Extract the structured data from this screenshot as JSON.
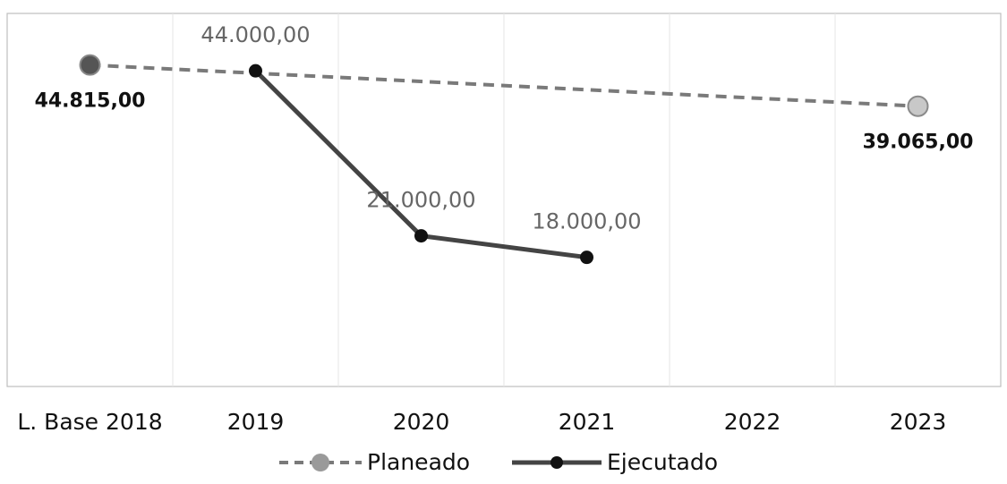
{
  "chart_data": {
    "type": "line",
    "categories": [
      "L. Base 2018",
      "2019",
      "2020",
      "2021",
      "2022",
      "2023"
    ],
    "series": [
      {
        "name": "Planeado",
        "values": [
          44815,
          null,
          null,
          null,
          null,
          39065
        ],
        "labels": [
          "44.815,00",
          null,
          null,
          null,
          null,
          "39.065,00"
        ],
        "style": "dashed",
        "color": "#7a7a7a",
        "marker_color": "#9a9a9a"
      },
      {
        "name": "Ejecutado",
        "values": [
          null,
          44000,
          21000,
          18000,
          null,
          null
        ],
        "labels": [
          null,
          "44.000,00",
          "21.000,00",
          "18.000,00",
          null,
          null
        ],
        "style": "solid",
        "color": "#444444",
        "marker_color": "#111111"
      }
    ],
    "ylim": [
      0,
      52000
    ],
    "grid": "vertical",
    "legend": "bottom"
  }
}
